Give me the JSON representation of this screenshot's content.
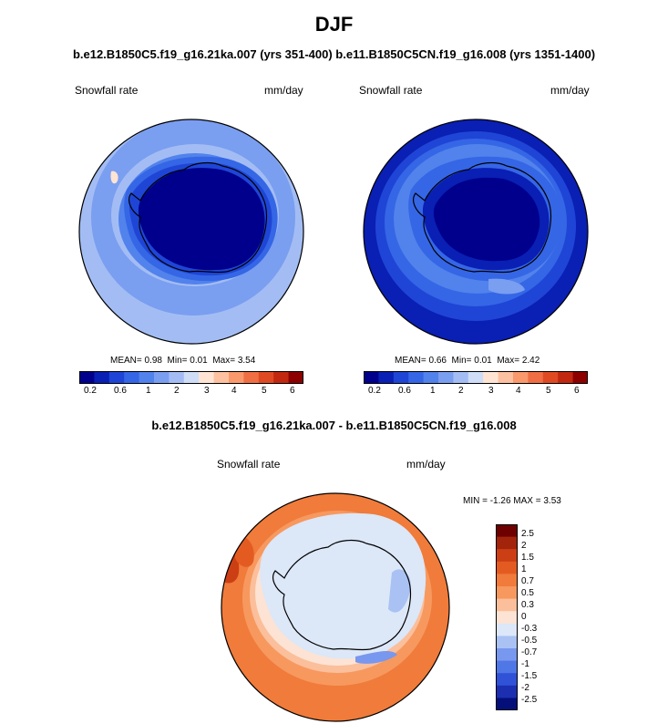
{
  "title": "DJF",
  "subtitle": "b.e12.B1850C5.f19_g16.21ka.007 (yrs 351-400) b.e11.B1850C5CN.f19_g16.008 (yrs 1351-1400)",
  "colors": {
    "seq": [
      "#00008c",
      "#0a1fb4",
      "#1f45d6",
      "#3566e6",
      "#5282eb",
      "#7a9ef0",
      "#a3bdf4",
      "#d0ddf7",
      "#ffe4d4",
      "#fcc1a0",
      "#f9996c",
      "#f06e43",
      "#e04a22",
      "#c1280f",
      "#8c0000"
    ],
    "diff": [
      "#050f7a",
      "#1b2fb0",
      "#2f52d6",
      "#5077e6",
      "#7897ee",
      "#a9c2f3",
      "#dce7f8",
      "#fde3d4",
      "#fbbf9b",
      "#f7985f",
      "#f07b3a",
      "#e45b21",
      "#cc3f14",
      "#a2240a",
      "#6e0000"
    ]
  },
  "panels": [
    {
      "left_label": "Snowfall rate",
      "unit": "mm/day",
      "stats": {
        "mean_label": "MEAN=",
        "mean": "0.98",
        "min_label": "Min=",
        "min": "0.01",
        "max_label": "Max=",
        "max": "3.54"
      },
      "colorbar_ticks": [
        "0.2",
        "0.6",
        "1",
        "2",
        "3",
        "4",
        "5",
        "6"
      ]
    },
    {
      "left_label": "Snowfall rate",
      "unit": "mm/day",
      "stats": {
        "mean_label": "MEAN=",
        "mean": "0.66",
        "min_label": "Min=",
        "min": "0.01",
        "max_label": "Max=",
        "max": "2.42"
      },
      "colorbar_ticks": [
        "0.2",
        "0.6",
        "1",
        "2",
        "3",
        "4",
        "5",
        "6"
      ]
    }
  ],
  "diff": {
    "title": "b.e12.B1850C5.f19_g16.21ka.007 - b.e11.B1850C5CN.f19_g16.008",
    "left_label": "Snowfall rate",
    "unit": "mm/day",
    "minmax": "MIN =  -1.26 MAX =   3.53",
    "colorbar_ticks": [
      "2.5",
      "2",
      "1.5",
      "1",
      "0.7",
      "0.5",
      "0.3",
      "0",
      "-0.3",
      "-0.5",
      "-0.7",
      "-1",
      "-1.5",
      "-2",
      "-2.5"
    ]
  },
  "chart_data": [
    {
      "type": "heatmap",
      "title": "Snowfall rate",
      "unit": "mm/day",
      "case": "b.e12.B1850C5.f19_g16.21ka.007 (yrs 351-400)",
      "projection": "south polar stereographic",
      "mean": 0.98,
      "min": 0.01,
      "max": 3.54,
      "colorbar_levels": [
        0.2,
        0.6,
        1,
        2,
        3,
        4,
        5,
        6
      ]
    },
    {
      "type": "heatmap",
      "title": "Snowfall rate",
      "unit": "mm/day",
      "case": "b.e11.B1850C5CN.f19_g16.008 (yrs 1351-1400)",
      "projection": "south polar stereographic",
      "mean": 0.66,
      "min": 0.01,
      "max": 2.42,
      "colorbar_levels": [
        0.2,
        0.6,
        1,
        2,
        3,
        4,
        5,
        6
      ]
    },
    {
      "type": "heatmap",
      "title": "Snowfall rate (difference)",
      "unit": "mm/day",
      "case": "b.e12.B1850C5.f19_g16.21ka.007 - b.e11.B1850C5CN.f19_g16.008",
      "min": -1.26,
      "max": 3.53,
      "colorbar_levels": [
        2.5,
        2,
        1.5,
        1,
        0.7,
        0.5,
        0.3,
        0,
        -0.3,
        -0.5,
        -0.7,
        -1,
        -1.5,
        -2,
        -2.5
      ]
    }
  ]
}
